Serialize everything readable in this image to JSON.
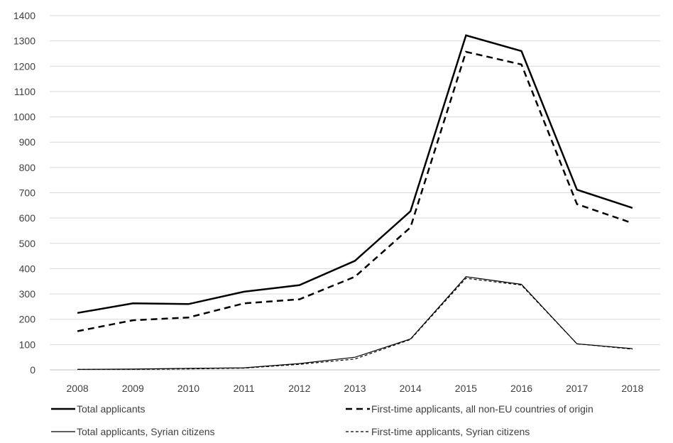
{
  "chart_data": {
    "type": "line",
    "title": "",
    "xlabel": "",
    "ylabel": "",
    "categories": [
      "2008",
      "2009",
      "2010",
      "2011",
      "2012",
      "2013",
      "2014",
      "2015",
      "2016",
      "2017",
      "2018"
    ],
    "ylim": [
      0,
      1400
    ],
    "yticks": [
      "0",
      "100",
      "200",
      "300",
      "400",
      "500",
      "600",
      "700",
      "800",
      "900",
      "1000",
      "1100",
      "1200",
      "1300",
      "1400"
    ],
    "grid": "horizontal",
    "legend_position": "bottom",
    "series": [
      {
        "name": "Total applicants",
        "style": "solid-thick",
        "color": "#000000",
        "values": [
          225,
          263,
          260,
          309,
          335,
          431,
          627,
          1322,
          1260,
          712,
          640
        ]
      },
      {
        "name": "First-time applicants, all non-EU countries of origin",
        "style": "dashed-thick",
        "color": "#000000",
        "values": [
          153,
          196,
          207,
          263,
          279,
          368,
          563,
          1257,
          1207,
          655,
          580
        ]
      },
      {
        "name": "Total applicants, Syrian citizens",
        "style": "solid-thin",
        "color": "#000000",
        "values": [
          2,
          3,
          6,
          8,
          25,
          50,
          122,
          368,
          338,
          103,
          84
        ]
      },
      {
        "name": "First-time applicants, Syrian citizens",
        "style": "dashed-thin",
        "color": "#000000",
        "values": [
          2,
          2,
          4,
          7,
          22,
          43,
          120,
          362,
          335,
          103,
          82
        ]
      }
    ]
  }
}
